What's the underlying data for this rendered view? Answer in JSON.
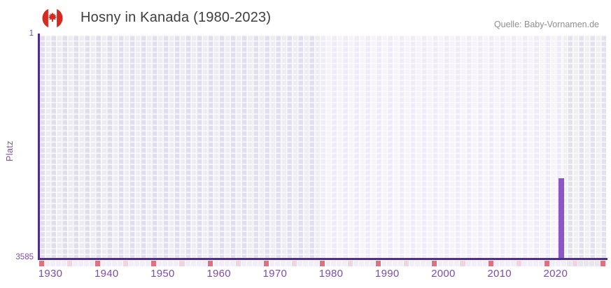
{
  "chart_data": {
    "type": "bar",
    "title": "Hosny in Kanada (1980-2023)",
    "source": "Quelle: Baby-Vornamen.de",
    "ylabel": "Platz",
    "y_axis": {
      "min": 1,
      "max": 3585,
      "inverted": true,
      "tick_labels": [
        "1",
        "3585"
      ]
    },
    "x_axis": {
      "range": [
        1928,
        2029
      ],
      "ticks": [
        1930,
        1940,
        1950,
        1960,
        1970,
        1980,
        1990,
        2000,
        2010,
        2020
      ]
    },
    "series": [
      {
        "name": "Hosny",
        "points": [
          {
            "year": 2021,
            "rank": 2300
          }
        ]
      }
    ],
    "plot_bands": [
      {
        "from": 1928,
        "to": 1978,
        "theme": "band_mid"
      },
      {
        "from": 1978,
        "to": 2021.5,
        "theme": "band_light"
      },
      {
        "from": 2021.5,
        "to": 2029,
        "theme": "band_dark"
      }
    ],
    "strip": {
      "major_every": 10,
      "minor_offset": 5
    },
    "colors": {
      "bar": "#8a56c8",
      "axis": "#4e2d90",
      "tick_text": "#7c4ea6",
      "title_text": "#3e3e3e",
      "source_text": "#8f8f8f",
      "band_mid": "#e2deeb",
      "band_light": "#f0ebf8",
      "band_dark": "#e3e1e9",
      "strip_major": "#e0707e",
      "strip_minor": "#f2d4e0",
      "strip_base_light": "#f2eef9",
      "strip_base_dark": "#e9e6ee",
      "flag_red": "#d52b1e"
    }
  }
}
